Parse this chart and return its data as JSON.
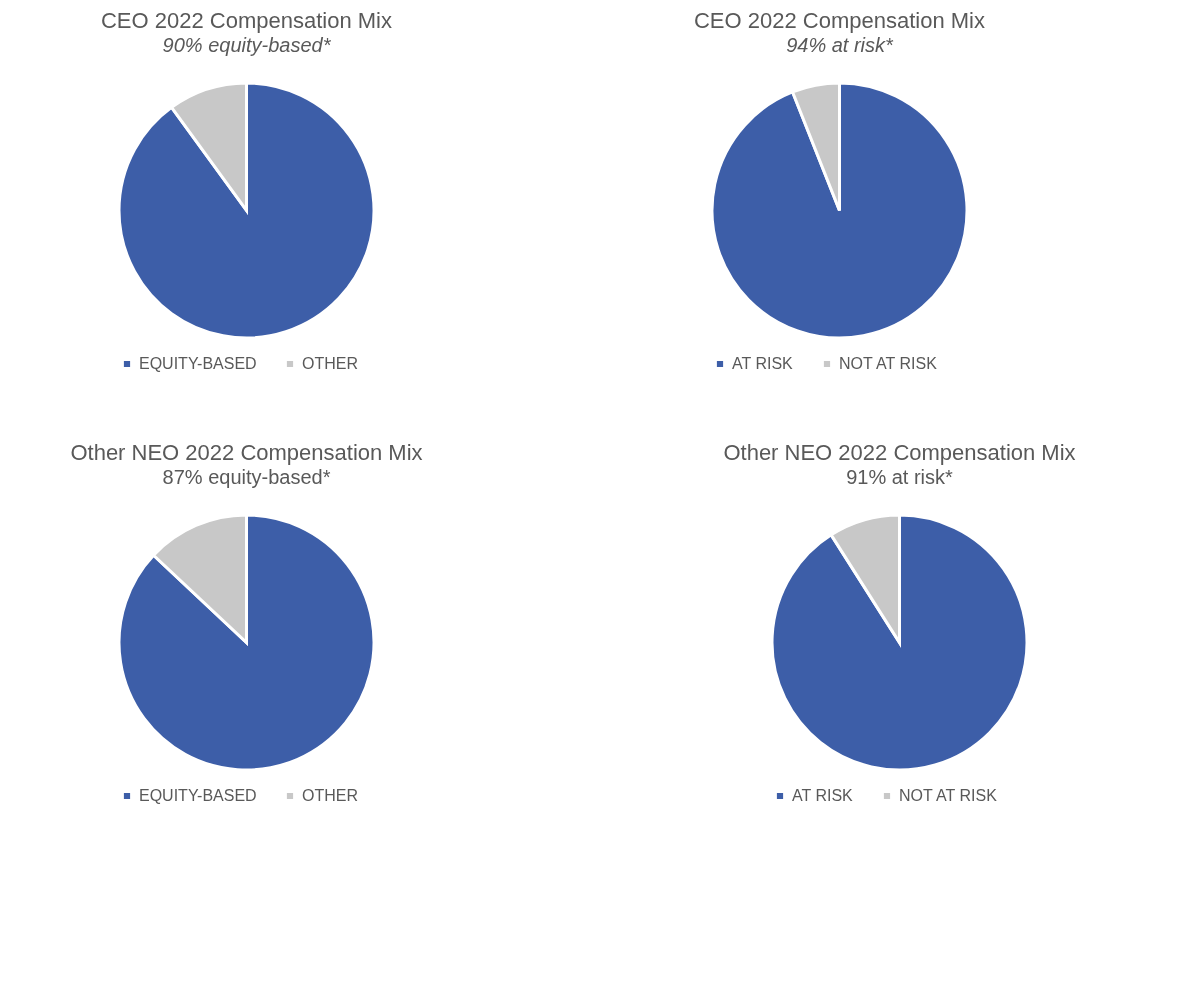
{
  "chart_data": [
    {
      "type": "pie",
      "title": "CEO 2022 Compensation Mix",
      "subtitle": "90% equity-based*",
      "categories": [
        "EQUITY-BASED",
        "OTHER"
      ],
      "values": [
        90,
        10
      ],
      "colors": [
        "#3d5ea8",
        "#c8c8c8"
      ],
      "legend": "bottom"
    },
    {
      "type": "pie",
      "title": "CEO 2022 Compensation Mix",
      "subtitle": "94% at risk*",
      "categories": [
        "AT RISK",
        "NOT AT RISK"
      ],
      "values": [
        94,
        6
      ],
      "colors": [
        "#3d5ea8",
        "#c8c8c8"
      ],
      "legend": "bottom"
    },
    {
      "type": "pie",
      "title": "Other NEO 2022 Compensation Mix",
      "subtitle": "87% equity-based*",
      "categories": [
        "EQUITY-BASED",
        "OTHER"
      ],
      "values": [
        87,
        13
      ],
      "colors": [
        "#3d5ea8",
        "#c8c8c8"
      ],
      "legend": "bottom"
    },
    {
      "type": "pie",
      "title": "Other NEO 2022 Compensation Mix",
      "subtitle": "91% at risk*",
      "categories": [
        "AT RISK",
        "NOT AT RISK"
      ],
      "values": [
        91,
        9
      ],
      "colors": [
        "#3d5ea8",
        "#c8c8c8"
      ],
      "legend": "bottom"
    }
  ]
}
